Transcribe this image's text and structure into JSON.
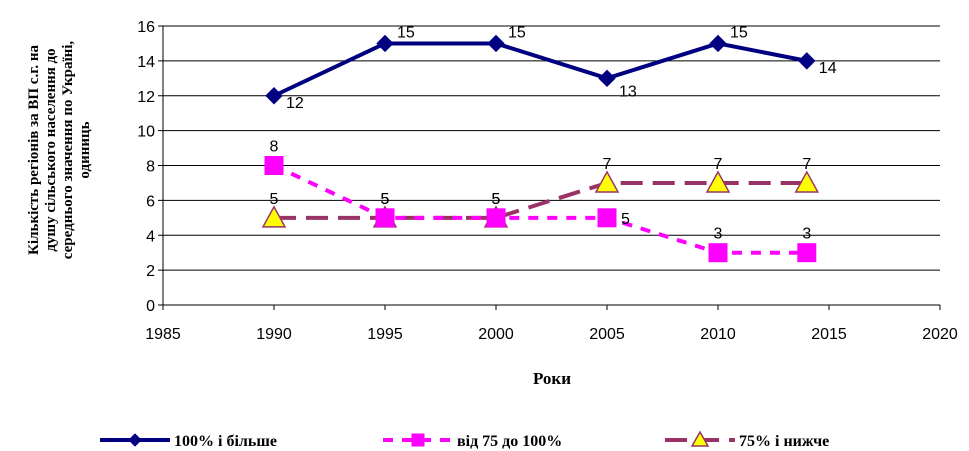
{
  "chart_data": {
    "type": "line",
    "title": "",
    "xlabel": "Роки",
    "ylabel_lines": [
      "Кількість регіонів за ВП с.г. на",
      "душу сільського населення до",
      "середнього значення по Україні,",
      "одиниць"
    ],
    "xlim": [
      1985,
      2020
    ],
    "ylim": [
      0,
      16
    ],
    "xticks": [
      1985,
      1990,
      1995,
      2000,
      2005,
      2010,
      2015,
      2020
    ],
    "yticks": [
      0,
      2,
      4,
      6,
      8,
      10,
      12,
      14,
      16
    ],
    "grid": "horizontal",
    "legend_position": "bottom",
    "x": [
      1990,
      1995,
      2000,
      2005,
      2010,
      2014
    ],
    "series": [
      {
        "name": "100% і більше",
        "values": [
          12,
          15,
          15,
          13,
          15,
          14
        ],
        "color": "#000080",
        "marker": "diamond",
        "dash": "solid"
      },
      {
        "name": "від 75 до 100%",
        "values": [
          8,
          5,
          5,
          5,
          3,
          3
        ],
        "color": "#ff00ff",
        "marker": "square",
        "dash": "dash"
      },
      {
        "name": "75% і нижче",
        "values": [
          5,
          5,
          5,
          7,
          7,
          7
        ],
        "color": "#993366",
        "marker": "triangle",
        "dash": "longdash"
      }
    ]
  }
}
